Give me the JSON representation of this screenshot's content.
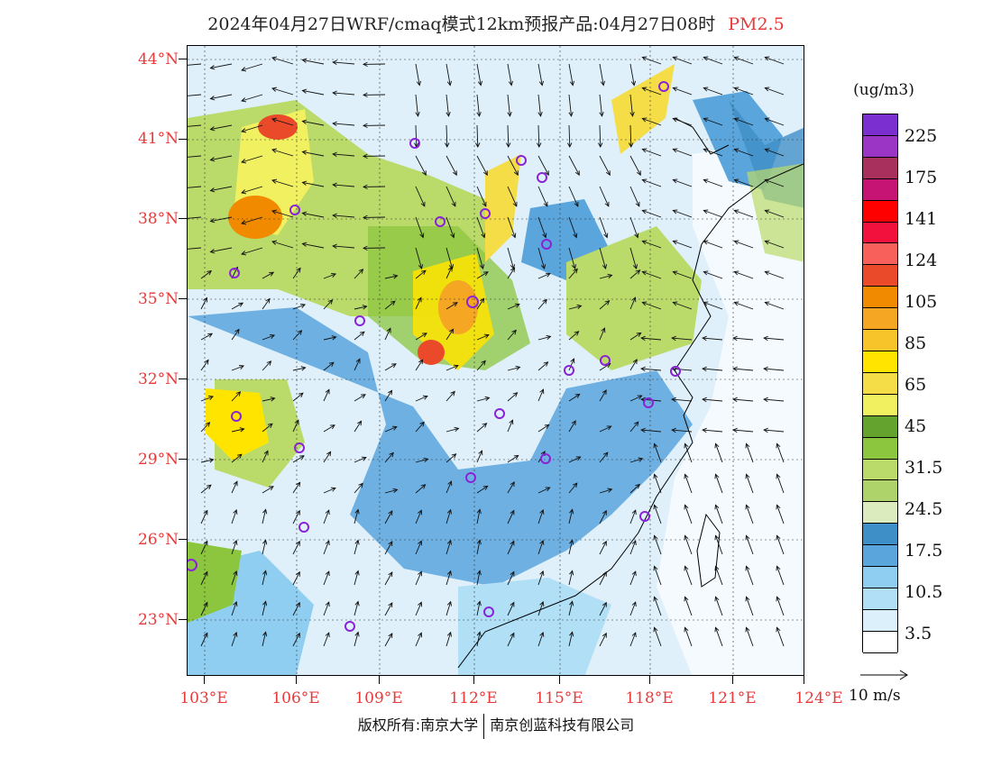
{
  "title": {
    "text": "2024年04月27日WRF/cmaq模式12km预报产品:04月27日08时",
    "pollutant": "PM2.5"
  },
  "axes": {
    "lat_labels": [
      "44°N",
      "41°N",
      "38°N",
      "35°N",
      "32°N",
      "29°N",
      "26°N",
      "23°N"
    ],
    "lon_labels": [
      "103°E",
      "106°E",
      "109°E",
      "112°E",
      "115°E",
      "118°E",
      "121°E",
      "124°E"
    ]
  },
  "legend": {
    "unit": "(ug/m3)",
    "colors": [
      "#7b2fd1",
      "#9a35c6",
      "#a8305d",
      "#c51474",
      "#ff0000",
      "#f2103c",
      "#f8605c",
      "#ea4a2a",
      "#f28a00",
      "#f5a623",
      "#f7c52a",
      "#ffe400",
      "#f4dd47",
      "#f0f060",
      "#63a32e",
      "#8cc63f",
      "#bada6a",
      "#aed36a",
      "#dcebbd",
      "#3e8ec7",
      "#5aa5dc",
      "#8fcef1",
      "#b0dff6",
      "#dbf0fa",
      "#ffffff"
    ],
    "labels": [
      "225",
      "175",
      "141",
      "124",
      "105",
      "85",
      "65",
      "45",
      "31.5",
      "24.5",
      "17.5",
      "10.5",
      "3.5"
    ]
  },
  "wind_reference": {
    "label": "10 m/s"
  },
  "footer": {
    "left": "版权所有:南京大学",
    "right": "南京创蓝科技有限公司"
  }
}
